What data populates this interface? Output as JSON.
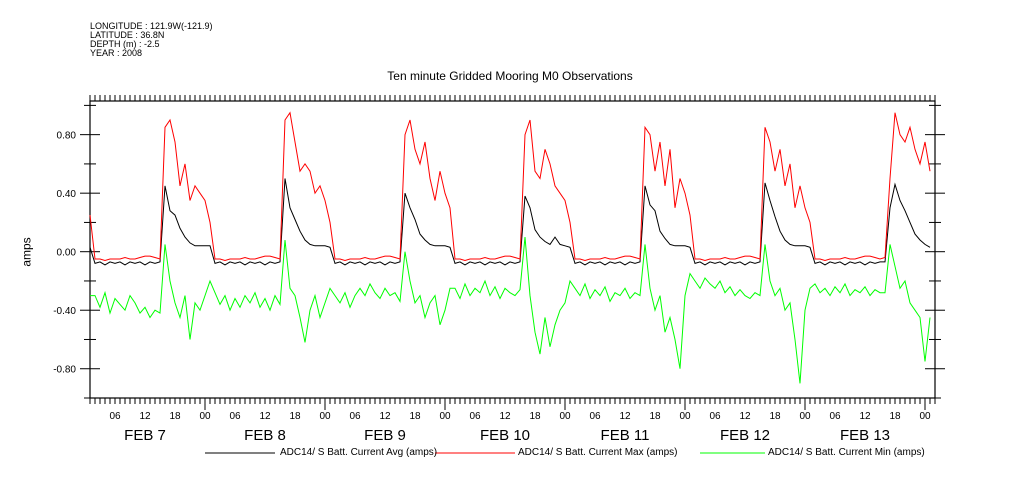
{
  "header": {
    "longitude": "LONGITUDE : 121.9W(-121.9)",
    "latitude": "LATITUDE : 36.8N",
    "depth": "DEPTH (m) : -2.5",
    "year": "YEAR : 2008"
  },
  "chart_data": {
    "type": "line",
    "title": "Ten minute Gridded Mooring M0 Observations",
    "xlabel": "",
    "ylabel": "amps",
    "x_units": "hours since FEB 7 00:00",
    "xlim": [
      1,
      170
    ],
    "ylim": [
      -1.0,
      1.03
    ],
    "y_ticks": [
      -0.8,
      -0.4,
      0.0,
      0.4,
      0.8
    ],
    "y_tick_labels": [
      "-0.80",
      "-0.40",
      "0.00",
      "0.40",
      "0.80"
    ],
    "x_hour_tick_labels": [
      "06",
      "12",
      "18",
      "00"
    ],
    "day_labels": [
      "FEB  7",
      "FEB  8",
      "FEB  9",
      "FEB 10",
      "FEB 11",
      "FEB 12",
      "FEB 13"
    ],
    "grid": false,
    "legend_placement": "bottom",
    "series": [
      {
        "name": "ADC14/ S Batt. Current Avg (amps)",
        "color": "#000000",
        "by_day": [
          [
            0.03,
            0.03,
            -0.08,
            -0.07,
            -0.09,
            -0.07,
            -0.08,
            -0.07,
            -0.09,
            -0.07,
            -0.08,
            -0.07,
            -0.09,
            -0.07,
            -0.08,
            -0.07,
            0.45,
            0.28,
            0.25,
            0.16,
            0.1,
            0.06,
            0.04,
            0.04
          ],
          [
            0.04,
            0.04,
            -0.08,
            -0.07,
            -0.09,
            -0.07,
            -0.08,
            -0.07,
            -0.09,
            -0.07,
            -0.08,
            -0.07,
            -0.09,
            -0.07,
            -0.08,
            -0.07,
            0.5,
            0.3,
            0.22,
            0.14,
            0.08,
            0.05,
            0.04,
            0.04
          ],
          [
            0.04,
            0.03,
            -0.08,
            -0.07,
            -0.09,
            -0.07,
            -0.08,
            -0.07,
            -0.09,
            -0.07,
            -0.08,
            -0.07,
            -0.09,
            -0.07,
            -0.08,
            -0.07,
            0.4,
            0.3,
            0.22,
            0.12,
            0.08,
            0.05,
            0.04,
            0.04
          ],
          [
            0.04,
            0.03,
            -0.08,
            -0.07,
            -0.09,
            -0.07,
            -0.08,
            -0.07,
            -0.09,
            -0.07,
            -0.08,
            -0.07,
            -0.09,
            -0.07,
            -0.08,
            -0.07,
            0.38,
            0.3,
            0.15,
            0.1,
            0.07,
            0.05,
            0.1,
            0.05
          ],
          [
            0.04,
            0.03,
            -0.08,
            -0.07,
            -0.09,
            -0.07,
            -0.08,
            -0.07,
            -0.09,
            -0.07,
            -0.08,
            -0.07,
            -0.09,
            -0.07,
            -0.08,
            -0.07,
            0.45,
            0.32,
            0.28,
            0.14,
            0.09,
            0.05,
            0.04,
            0.04
          ],
          [
            0.04,
            0.03,
            -0.08,
            -0.07,
            -0.09,
            -0.07,
            -0.08,
            -0.07,
            -0.09,
            -0.07,
            -0.08,
            -0.07,
            -0.09,
            -0.07,
            -0.08,
            -0.07,
            0.47,
            0.35,
            0.24,
            0.14,
            0.08,
            0.05,
            0.04,
            0.04
          ],
          [
            0.04,
            0.03,
            -0.08,
            -0.07,
            -0.09,
            -0.07,
            -0.08,
            -0.07,
            -0.09,
            -0.07,
            -0.08,
            -0.07,
            -0.09,
            -0.07,
            -0.08,
            -0.07,
            -0.07,
            0.3,
            0.46,
            0.35,
            0.28,
            0.2,
            0.12,
            0.08
          ],
          [
            0.05,
            0.03
          ]
        ]
      },
      {
        "name": "ADC14/ S Batt. Current Max (amps)",
        "color": "#ff0000",
        "by_day": [
          [
            0.3,
            0.25,
            -0.05,
            -0.05,
            -0.06,
            -0.05,
            -0.05,
            -0.05,
            -0.04,
            -0.05,
            -0.05,
            -0.04,
            -0.03,
            -0.03,
            -0.04,
            -0.05,
            0.85,
            0.9,
            0.75,
            0.45,
            0.6,
            0.35,
            0.45,
            0.4
          ],
          [
            0.35,
            0.2,
            -0.05,
            -0.05,
            -0.06,
            -0.05,
            -0.05,
            -0.05,
            -0.04,
            -0.05,
            -0.05,
            -0.04,
            -0.03,
            -0.03,
            -0.04,
            -0.05,
            0.9,
            0.95,
            0.75,
            0.55,
            0.6,
            0.55,
            0.4,
            0.45
          ],
          [
            0.35,
            0.2,
            -0.05,
            -0.05,
            -0.06,
            -0.05,
            -0.05,
            -0.05,
            -0.04,
            -0.05,
            -0.05,
            -0.04,
            -0.03,
            -0.03,
            -0.04,
            -0.05,
            0.8,
            0.9,
            0.7,
            0.6,
            0.75,
            0.5,
            0.35,
            0.55
          ],
          [
            0.4,
            0.3,
            -0.05,
            -0.05,
            -0.06,
            -0.05,
            -0.05,
            -0.05,
            -0.04,
            -0.05,
            -0.05,
            -0.04,
            -0.03,
            -0.03,
            -0.04,
            -0.05,
            0.8,
            0.9,
            0.55,
            0.5,
            0.7,
            0.6,
            0.45,
            0.4
          ],
          [
            0.35,
            0.2,
            -0.05,
            -0.05,
            -0.06,
            -0.05,
            -0.05,
            -0.05,
            -0.04,
            -0.05,
            -0.05,
            -0.04,
            -0.03,
            -0.03,
            -0.04,
            -0.05,
            0.85,
            0.8,
            0.55,
            0.75,
            0.45,
            0.7,
            0.3,
            0.5
          ],
          [
            0.4,
            0.25,
            -0.05,
            -0.05,
            -0.06,
            -0.05,
            -0.05,
            -0.05,
            -0.04,
            -0.05,
            -0.05,
            -0.04,
            -0.03,
            -0.03,
            -0.04,
            -0.05,
            0.85,
            0.75,
            0.55,
            0.7,
            0.45,
            0.6,
            0.3,
            0.45
          ],
          [
            0.3,
            0.2,
            -0.05,
            -0.05,
            -0.06,
            -0.05,
            -0.05,
            -0.05,
            -0.04,
            -0.05,
            -0.05,
            -0.04,
            -0.03,
            -0.03,
            -0.04,
            -0.05,
            -0.04,
            0.5,
            0.95,
            0.8,
            0.75,
            0.85,
            0.7,
            0.6
          ],
          [
            0.75,
            0.55
          ]
        ]
      },
      {
        "name": "ADC14/ S Batt. Current Min (amps)",
        "color": "#00ff00",
        "by_day": [
          [
            -0.2,
            -0.3,
            -0.3,
            -0.38,
            -0.28,
            -0.42,
            -0.32,
            -0.36,
            -0.4,
            -0.3,
            -0.35,
            -0.42,
            -0.38,
            -0.45,
            -0.4,
            -0.42,
            0.05,
            -0.2,
            -0.35,
            -0.45,
            -0.3,
            -0.6,
            -0.35,
            -0.4
          ],
          [
            -0.3,
            -0.2,
            -0.28,
            -0.36,
            -0.3,
            -0.4,
            -0.32,
            -0.38,
            -0.3,
            -0.35,
            -0.28,
            -0.38,
            -0.32,
            -0.4,
            -0.3,
            -0.36,
            0.08,
            -0.25,
            -0.3,
            -0.45,
            -0.62,
            -0.4,
            -0.3,
            -0.45
          ],
          [
            -0.35,
            -0.25,
            -0.3,
            -0.35,
            -0.28,
            -0.38,
            -0.3,
            -0.25,
            -0.3,
            -0.22,
            -0.28,
            -0.32,
            -0.25,
            -0.3,
            -0.28,
            -0.34,
            0.0,
            -0.2,
            -0.35,
            -0.3,
            -0.45,
            -0.35,
            -0.3,
            -0.5
          ],
          [
            -0.4,
            -0.25,
            -0.25,
            -0.32,
            -0.22,
            -0.3,
            -0.25,
            -0.28,
            -0.2,
            -0.3,
            -0.24,
            -0.32,
            -0.25,
            -0.28,
            -0.3,
            -0.26,
            0.1,
            -0.3,
            -0.55,
            -0.7,
            -0.45,
            -0.65,
            -0.5,
            -0.4
          ],
          [
            -0.35,
            -0.2,
            -0.25,
            -0.3,
            -0.22,
            -0.32,
            -0.26,
            -0.3,
            -0.24,
            -0.34,
            -0.28,
            -0.3,
            -0.25,
            -0.32,
            -0.28,
            -0.3,
            0.05,
            -0.25,
            -0.4,
            -0.3,
            -0.55,
            -0.45,
            -0.6,
            -0.8
          ],
          [
            -0.3,
            -0.15,
            -0.2,
            -0.25,
            -0.18,
            -0.22,
            -0.25,
            -0.2,
            -0.28,
            -0.24,
            -0.3,
            -0.26,
            -0.3,
            -0.32,
            -0.28,
            -0.3,
            0.05,
            -0.2,
            -0.3,
            -0.25,
            -0.4,
            -0.35,
            -0.6,
            -0.9
          ],
          [
            -0.4,
            -0.25,
            -0.22,
            -0.28,
            -0.25,
            -0.3,
            -0.24,
            -0.28,
            -0.22,
            -0.3,
            -0.26,
            -0.28,
            -0.24,
            -0.3,
            -0.26,
            -0.28,
            -0.28,
            0.05,
            -0.1,
            -0.25,
            -0.2,
            -0.35,
            -0.4,
            -0.45
          ],
          [
            -0.75,
            -0.45
          ]
        ]
      }
    ]
  }
}
